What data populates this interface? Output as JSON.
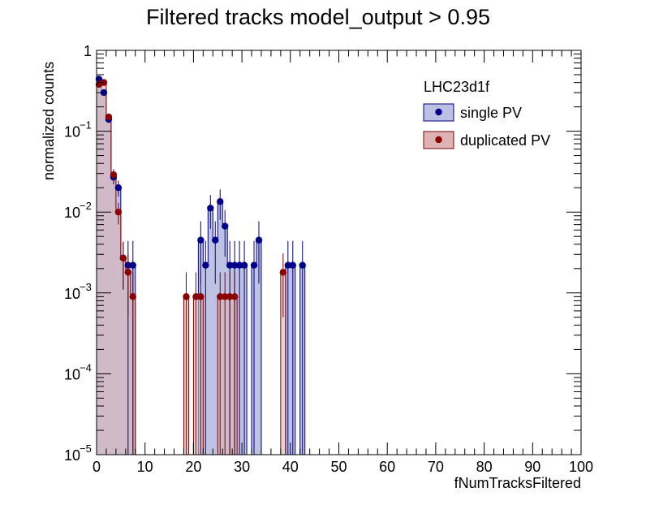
{
  "chart_data": {
    "type": "histogram",
    "title": "Filtered tracks  model_output > 0.95",
    "xlabel": "fNumTracksFiltered",
    "ylabel": "normalized counts",
    "xlim": [
      0,
      100
    ],
    "ylim": [
      1e-05,
      1
    ],
    "yscale": "log",
    "x_ticks": [
      "0",
      "10",
      "20",
      "30",
      "40",
      "50",
      "60",
      "70",
      "80",
      "90",
      "100"
    ],
    "y_ticks": [
      {
        "base": "10",
        "exp": "−5",
        "value": 1e-05
      },
      {
        "base": "10",
        "exp": "−4",
        "value": 0.0001
      },
      {
        "base": "10",
        "exp": "−3",
        "value": 0.001
      },
      {
        "base": "10",
        "exp": "−2",
        "value": 0.01
      },
      {
        "base": "10",
        "exp": "−1",
        "value": 0.1
      },
      {
        "base": "1",
        "exp": "",
        "value": 1
      }
    ],
    "bin_width": 1,
    "legend": {
      "header": "LHC23d1f",
      "placement": "top-right",
      "entries": [
        "single PV",
        "duplicated PV"
      ]
    },
    "series": [
      {
        "name": "single PV",
        "fill": "#bcc0e2",
        "line": "#00007e",
        "marker": "#00008b",
        "bins": [
          {
            "x": 0,
            "y": 0.44,
            "err": 0.02
          },
          {
            "x": 1,
            "y": 0.3,
            "err": 0.02
          },
          {
            "x": 2,
            "y": 0.14,
            "err": 0.012
          },
          {
            "x": 3,
            "y": 0.027,
            "err": 0.005
          },
          {
            "x": 4,
            "y": 0.02,
            "err": 0.0045
          },
          {
            "x": 5,
            "y": 0.0027,
            "err": 0.0016
          },
          {
            "x": 6,
            "y": 0.0022,
            "err": 0.0022
          },
          {
            "x": 7,
            "y": 0.0022,
            "err": 0.0022
          },
          {
            "x": 21,
            "y": 0.0045,
            "err": 0.0032
          },
          {
            "x": 22,
            "y": 0.0022,
            "err": 0.0022
          },
          {
            "x": 23,
            "y": 0.0112,
            "err": 0.005
          },
          {
            "x": 24,
            "y": 0.0045,
            "err": 0.0032
          },
          {
            "x": 25,
            "y": 0.0135,
            "err": 0.0055
          },
          {
            "x": 26,
            "y": 0.0067,
            "err": 0.0039
          },
          {
            "x": 27,
            "y": 0.0022,
            "err": 0.0022
          },
          {
            "x": 28,
            "y": 0.0022,
            "err": 0.0022
          },
          {
            "x": 29,
            "y": 0.0022,
            "err": 0.0022
          },
          {
            "x": 30,
            "y": 0.0022,
            "err": 0.0022
          },
          {
            "x": 32,
            "y": 0.0022,
            "err": 0.0022
          },
          {
            "x": 33,
            "y": 0.0045,
            "err": 0.0032
          },
          {
            "x": 39,
            "y": 0.0022,
            "err": 0.0022
          },
          {
            "x": 40,
            "y": 0.0022,
            "err": 0.0022
          },
          {
            "x": 42,
            "y": 0.0022,
            "err": 0.0022
          }
        ]
      },
      {
        "name": "duplicated PV",
        "fill": "#dcb4b4",
        "line": "#7e0000",
        "marker": "#8b0000",
        "bins": [
          {
            "x": 0,
            "y": 0.38,
            "err": 0.02
          },
          {
            "x": 1,
            "y": 0.4,
            "err": 0.02
          },
          {
            "x": 2,
            "y": 0.15,
            "err": 0.012
          },
          {
            "x": 3,
            "y": 0.029,
            "err": 0.005
          },
          {
            "x": 4,
            "y": 0.01,
            "err": 0.003
          },
          {
            "x": 5,
            "y": 0.0027,
            "err": 0.0016
          },
          {
            "x": 6,
            "y": 0.0018,
            "err": 0.0013
          },
          {
            "x": 7,
            "y": 0.0009,
            "err": 0.0009
          },
          {
            "x": 18,
            "y": 0.0009,
            "err": 0.0009
          },
          {
            "x": 20,
            "y": 0.0009,
            "err": 0.0009
          },
          {
            "x": 21,
            "y": 0.0009,
            "err": 0.0009
          },
          {
            "x": 25,
            "y": 0.0009,
            "err": 0.0009
          },
          {
            "x": 26,
            "y": 0.0009,
            "err": 0.0009
          },
          {
            "x": 27,
            "y": 0.0009,
            "err": 0.0009
          },
          {
            "x": 28,
            "y": 0.0009,
            "err": 0.0009
          },
          {
            "x": 38,
            "y": 0.0018,
            "err": 0.0013
          }
        ]
      }
    ]
  }
}
